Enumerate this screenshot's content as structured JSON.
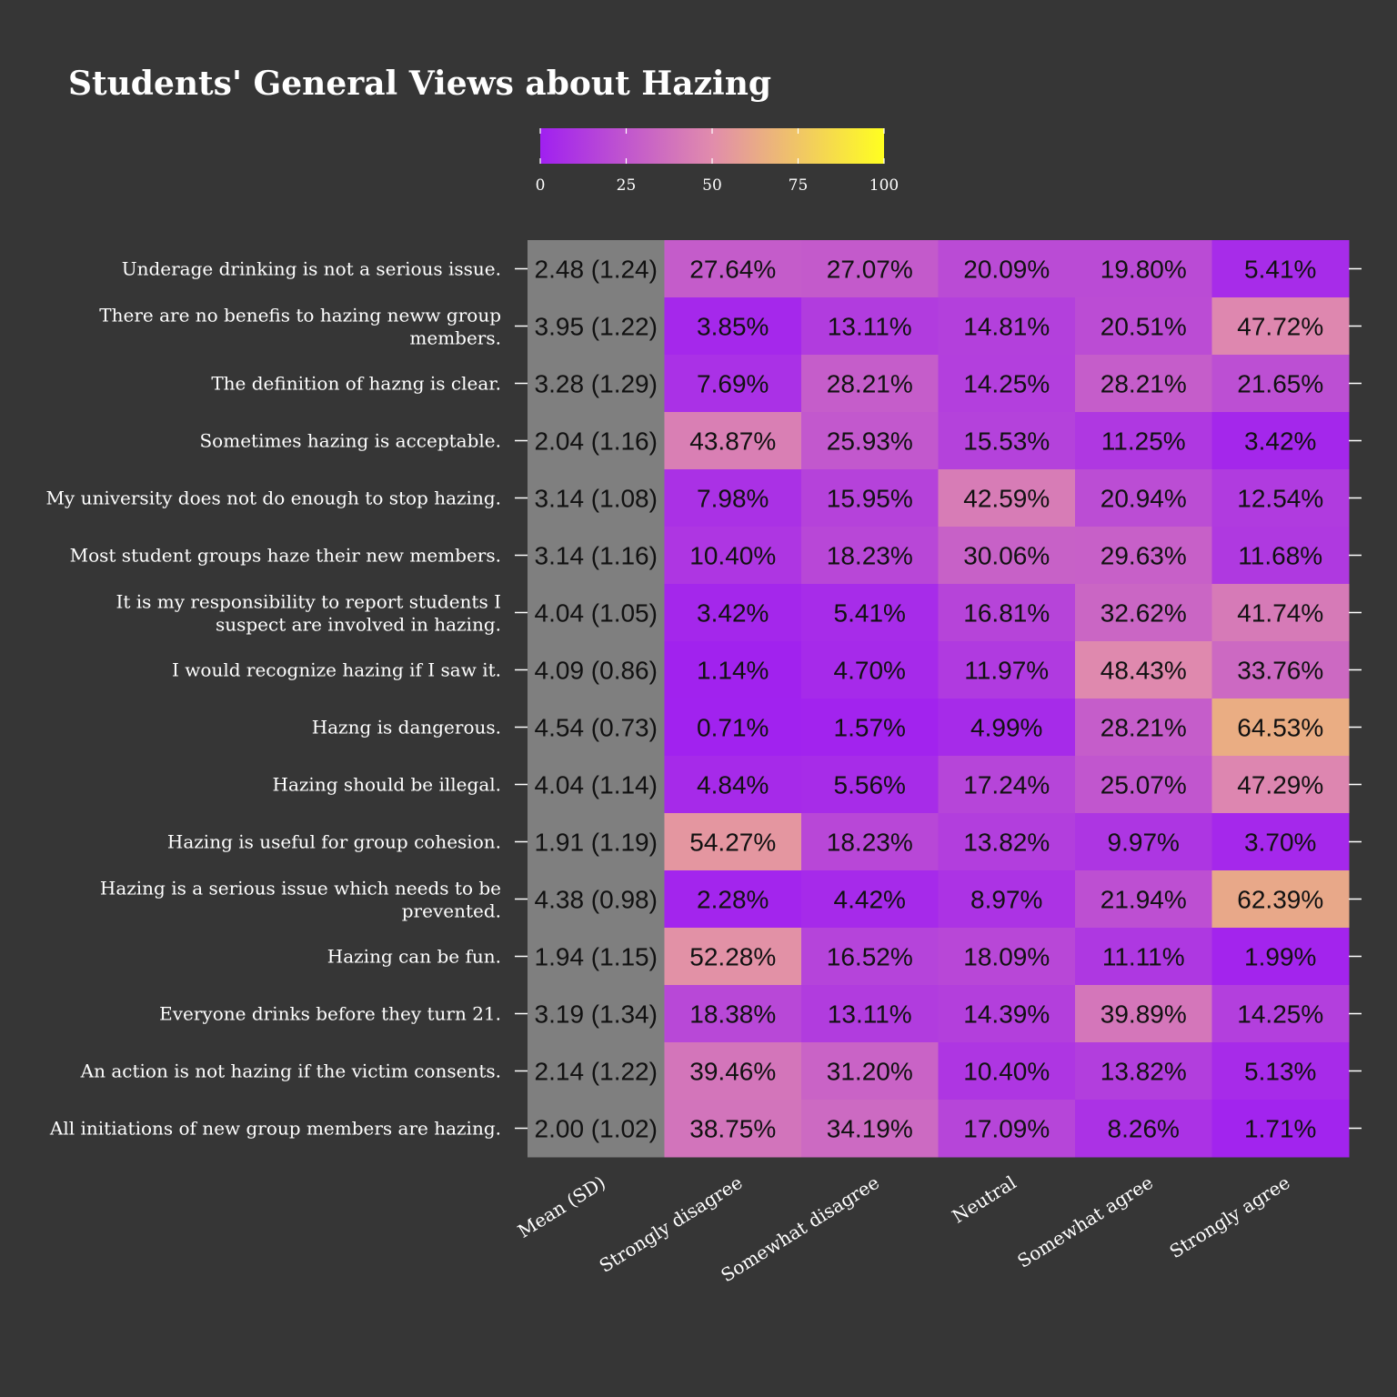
{
  "chart_data": {
    "type": "heatmap",
    "title": "Students' General Views about Hazing",
    "columns": [
      "Mean (SD)",
      "Strongly disagree",
      "Somewhat disagree",
      "Neutral",
      "Somewhat agree",
      "Strongly agree"
    ],
    "legend": {
      "position": "top",
      "range": [
        0,
        100
      ],
      "ticks": [
        "0",
        "25",
        "50",
        "75",
        "100"
      ],
      "colors": [
        "#a020f0",
        "#e18cac",
        "#ffff20"
      ]
    },
    "mean_column_color": "#7f7f7f",
    "rows": [
      {
        "label": [
          "Underage drinking is not a serious issue."
        ],
        "mean_sd": "2.48 (1.24)",
        "values": [
          27.64,
          27.07,
          20.09,
          19.8,
          5.41
        ]
      },
      {
        "label": [
          "There are no benefis to hazing neww group",
          "members."
        ],
        "mean_sd": "3.95 (1.22)",
        "values": [
          3.85,
          13.11,
          14.81,
          20.51,
          47.72
        ]
      },
      {
        "label": [
          "The definition of hazng is clear."
        ],
        "mean_sd": "3.28 (1.29)",
        "values": [
          7.69,
          28.21,
          14.25,
          28.21,
          21.65
        ]
      },
      {
        "label": [
          "Sometimes hazing is acceptable."
        ],
        "mean_sd": "2.04 (1.16)",
        "values": [
          43.87,
          25.93,
          15.53,
          11.25,
          3.42
        ]
      },
      {
        "label": [
          "My university does not do enough to stop hazing."
        ],
        "mean_sd": "3.14 (1.08)",
        "values": [
          7.98,
          15.95,
          42.59,
          20.94,
          12.54
        ]
      },
      {
        "label": [
          "Most student groups haze their new members."
        ],
        "mean_sd": "3.14 (1.16)",
        "values": [
          10.4,
          18.23,
          30.06,
          29.63,
          11.68
        ]
      },
      {
        "label": [
          "It is my responsibility to report students I",
          "suspect are involved in hazing."
        ],
        "mean_sd": "4.04 (1.05)",
        "values": [
          3.42,
          5.41,
          16.81,
          32.62,
          41.74
        ]
      },
      {
        "label": [
          "I would recognize hazing if I saw it."
        ],
        "mean_sd": "4.09 (0.86)",
        "values": [
          1.14,
          4.7,
          11.97,
          48.43,
          33.76
        ]
      },
      {
        "label": [
          "Hazng is dangerous."
        ],
        "mean_sd": "4.54 (0.73)",
        "values": [
          0.71,
          1.57,
          4.99,
          28.21,
          64.53
        ]
      },
      {
        "label": [
          "Hazing should be illegal."
        ],
        "mean_sd": "4.04 (1.14)",
        "values": [
          4.84,
          5.56,
          17.24,
          25.07,
          47.29
        ]
      },
      {
        "label": [
          "Hazing is useful for group cohesion."
        ],
        "mean_sd": "1.91 (1.19)",
        "values": [
          54.27,
          18.23,
          13.82,
          9.97,
          3.7
        ]
      },
      {
        "label": [
          "Hazing is a serious issue which needs to be",
          "prevented."
        ],
        "mean_sd": "4.38 (0.98)",
        "values": [
          2.28,
          4.42,
          8.97,
          21.94,
          62.39
        ]
      },
      {
        "label": [
          "Hazing can be fun."
        ],
        "mean_sd": "1.94 (1.15)",
        "values": [
          52.28,
          16.52,
          18.09,
          11.11,
          1.99
        ]
      },
      {
        "label": [
          "Everyone drinks before they turn 21."
        ],
        "mean_sd": "3.19 (1.34)",
        "values": [
          18.38,
          13.11,
          14.39,
          39.89,
          14.25
        ]
      },
      {
        "label": [
          "An action is not hazing if the victim consents."
        ],
        "mean_sd": "2.14 (1.22)",
        "values": [
          39.46,
          31.2,
          10.4,
          13.82,
          5.13
        ]
      },
      {
        "label": [
          "All initiations of new group members are hazing."
        ],
        "mean_sd": "2.00 (1.02)",
        "values": [
          38.75,
          34.19,
          17.09,
          8.26,
          1.71
        ]
      }
    ]
  }
}
